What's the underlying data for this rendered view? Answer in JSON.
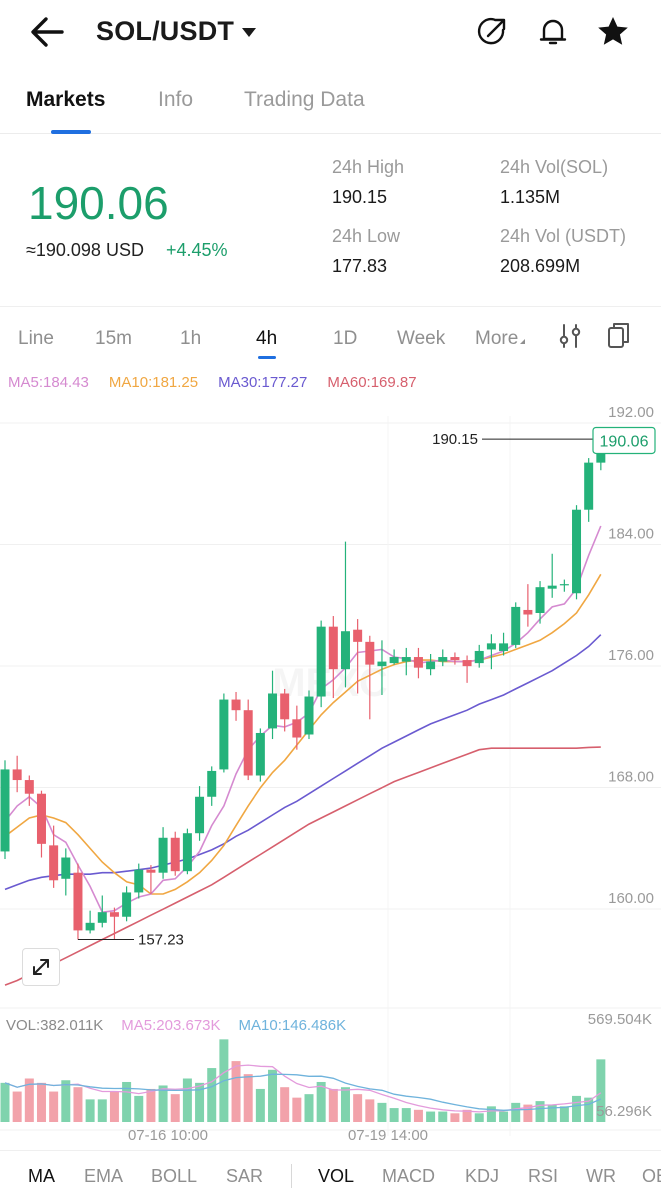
{
  "header": {
    "pair": "SOL/USDT",
    "back_icon": "back-arrow-icon",
    "icons": [
      "share-icon",
      "bell-icon",
      "star-icon"
    ]
  },
  "tabs": [
    {
      "label": "Markets",
      "active": true
    },
    {
      "label": "Info",
      "active": false
    },
    {
      "label": "Trading Data",
      "active": false
    }
  ],
  "ticker": {
    "last_price": "190.06",
    "approx_usd": "≈190.098 USD",
    "change": "+4.45%",
    "high_label": "24h High",
    "high_value": "190.15",
    "low_label": "24h Low",
    "low_value": "177.83",
    "vol_sol_label": "24h Vol(SOL)",
    "vol_sol_value": "1.135M",
    "vol_usdt_label": "24h Vol (USDT)",
    "vol_usdt_value": "208.699M"
  },
  "intervals": {
    "items": [
      "Line",
      "15m",
      "1h",
      "4h",
      "1D",
      "Week",
      "More"
    ],
    "active": "4h",
    "icons": [
      "indicator-settings-icon",
      "copy-icon"
    ]
  },
  "ma_legend": [
    {
      "label": "MA5:184.43",
      "color": "#d58ad0"
    },
    {
      "label": "MA10:181.25",
      "color": "#f0a742"
    },
    {
      "label": "MA30:177.27",
      "color": "#6a5ad0"
    },
    {
      "label": "MA60:169.87",
      "color": "#d65f6d"
    }
  ],
  "vol_legend": [
    {
      "label": "VOL:382.011K",
      "color": "#9a9a9a"
    },
    {
      "label": "MA5:203.673K",
      "color": "#e39bdc"
    },
    {
      "label": "MA10:146.486K",
      "color": "#6fb3dc"
    }
  ],
  "indicators": {
    "main": [
      "MA",
      "EMA",
      "BOLL",
      "SAR"
    ],
    "sub": [
      "VOL",
      "MACD",
      "KDJ",
      "RSI",
      "WR",
      "OB"
    ],
    "active_main": "MA",
    "active_sub": "VOL"
  },
  "colors": {
    "up": "#24b27a",
    "down": "#e8606d",
    "price_text": "#1c9e6b",
    "accent": "#1f6fe0"
  },
  "chart_data": {
    "type": "candlestick",
    "y_ticks": [
      "192.00",
      "184.00",
      "176.00",
      "168.00",
      "160.00"
    ],
    "ylim": [
      153.3,
      194.6
    ],
    "x_tick_labels": [
      "07-16 10:00",
      "07-19 14:00"
    ],
    "current_price_tag": "190.06",
    "max_label": "190.15",
    "min_label": "157.23",
    "volume_axis_labels": [
      "569.504K",
      "56.296K"
    ],
    "watermark": "MEXC",
    "candles": [
      [
        163.0,
        168.4,
        162.5,
        169.0
      ],
      [
        168.4,
        167.7,
        166.9,
        169.3
      ],
      [
        167.7,
        166.8,
        166.0,
        168.0
      ],
      [
        166.8,
        163.5,
        162.6,
        167.0
      ],
      [
        163.4,
        161.1,
        160.6,
        164.7
      ],
      [
        161.2,
        162.6,
        160.1,
        163.2
      ],
      [
        161.6,
        157.8,
        157.2,
        162.2
      ],
      [
        157.8,
        158.3,
        157.6,
        159.1
      ],
      [
        158.3,
        159.0,
        158.0,
        160.1
      ],
      [
        159.0,
        158.7,
        157.2,
        159.3
      ],
      [
        158.7,
        160.3,
        158.4,
        160.7
      ],
      [
        160.3,
        161.8,
        159.9,
        162.2
      ],
      [
        161.8,
        161.6,
        160.2,
        162.1
      ],
      [
        161.6,
        163.9,
        161.2,
        164.6
      ],
      [
        163.9,
        161.7,
        161.4,
        164.3
      ],
      [
        161.7,
        164.2,
        161.5,
        164.5
      ],
      [
        164.2,
        166.6,
        163.7,
        167.3
      ],
      [
        166.6,
        168.3,
        166.0,
        168.6
      ],
      [
        168.4,
        173.0,
        168.2,
        173.4
      ],
      [
        173.0,
        172.3,
        171.6,
        173.5
      ],
      [
        172.3,
        168.0,
        167.7,
        173.0
      ],
      [
        168.0,
        170.8,
        167.6,
        171.1
      ],
      [
        171.1,
        173.4,
        170.4,
        174.9
      ],
      [
        173.4,
        171.7,
        170.9,
        173.7
      ],
      [
        171.7,
        170.5,
        169.7,
        172.6
      ],
      [
        170.7,
        173.2,
        170.4,
        173.6
      ],
      [
        173.2,
        177.8,
        172.5,
        178.2
      ],
      [
        177.8,
        175.0,
        173.1,
        178.5
      ],
      [
        175.0,
        177.5,
        173.8,
        183.4
      ],
      [
        177.6,
        176.8,
        173.4,
        178.3
      ],
      [
        176.8,
        175.3,
        171.7,
        177.2
      ],
      [
        175.2,
        175.5,
        173.3,
        176.9
      ],
      [
        175.4,
        175.8,
        175.3,
        176.3
      ],
      [
        175.5,
        175.8,
        174.6,
        176.4
      ],
      [
        175.8,
        175.1,
        174.4,
        176.4
      ],
      [
        175.0,
        175.5,
        174.6,
        176.0
      ],
      [
        175.5,
        175.8,
        175.2,
        176.3
      ],
      [
        175.8,
        175.6,
        175.3,
        176.1
      ],
      [
        175.6,
        175.2,
        174.1,
        175.9
      ],
      [
        175.4,
        176.2,
        175.1,
        176.6
      ],
      [
        176.3,
        176.7,
        175.0,
        177.3
      ],
      [
        176.2,
        176.7,
        175.9,
        177.4
      ],
      [
        176.6,
        179.1,
        176.4,
        179.4
      ],
      [
        178.9,
        178.6,
        177.8,
        180.6
      ],
      [
        178.7,
        180.4,
        178.0,
        180.8
      ],
      [
        180.3,
        180.5,
        179.7,
        182.6
      ],
      [
        180.6,
        180.6,
        180.1,
        180.9
      ],
      [
        180.0,
        185.5,
        179.6,
        185.8
      ],
      [
        185.5,
        188.6,
        184.7,
        188.9
      ],
      [
        188.6,
        190.06,
        188.1,
        190.15
      ]
    ],
    "ma_lines": {
      "MA5": [
        165.0,
        166.0,
        166.6,
        165.9,
        164.1,
        163.6,
        162.1,
        160.7,
        159.0,
        159.1,
        159.6,
        160.0,
        160.2,
        161.1,
        161.2,
        162.0,
        163.0,
        164.7,
        166.0,
        168.1,
        169.7,
        170.6,
        171.3,
        171.2,
        171.5,
        172.1,
        173.7,
        174.3,
        175.1,
        176.1,
        176.2,
        176.3,
        175.8,
        175.7,
        175.4,
        175.5,
        175.6,
        175.5,
        175.5,
        175.6,
        175.9,
        176.2,
        176.7,
        177.4,
        178.3,
        179.1,
        179.3,
        180.3,
        182.5,
        184.43
      ],
      "MA10": [
        164.0,
        164.6,
        165.2,
        165.4,
        165.2,
        164.9,
        164.1,
        163.2,
        162.3,
        161.6,
        161.0,
        160.8,
        160.2,
        160.2,
        160.5,
        161.0,
        161.6,
        162.4,
        163.4,
        164.7,
        166.0,
        167.2,
        168.2,
        169.0,
        170.0,
        171.0,
        172.0,
        172.8,
        173.5,
        174.2,
        174.6,
        175.0,
        175.3,
        175.5,
        175.6,
        175.6,
        175.5,
        175.5,
        175.5,
        175.6,
        175.8,
        176.0,
        176.3,
        176.6,
        176.9,
        177.4,
        178.0,
        178.7,
        179.9,
        181.25
      ],
      "MA30": [
        160.5,
        160.8,
        161.1,
        161.3,
        161.4,
        161.5,
        161.5,
        161.5,
        161.6,
        161.6,
        161.7,
        161.8,
        161.9,
        162.1,
        162.3,
        162.5,
        162.8,
        163.1,
        163.5,
        164.0,
        164.4,
        164.9,
        165.4,
        165.9,
        166.3,
        166.8,
        167.3,
        167.8,
        168.3,
        168.8,
        169.3,
        169.8,
        170.2,
        170.6,
        171.0,
        171.4,
        171.7,
        172.0,
        172.3,
        172.7,
        173.0,
        173.3,
        173.7,
        174.1,
        174.5,
        174.9,
        175.4,
        175.9,
        176.5,
        177.27
      ],
      "MA60": [
        154.2,
        154.5,
        154.9,
        155.2,
        155.6,
        156.0,
        156.4,
        156.8,
        157.2,
        157.6,
        158.0,
        158.4,
        158.8,
        159.2,
        159.6,
        160.0,
        160.4,
        160.8,
        161.3,
        161.8,
        162.3,
        162.8,
        163.3,
        163.8,
        164.3,
        164.8,
        165.2,
        165.6,
        166.0,
        166.4,
        166.8,
        167.2,
        167.6,
        167.9,
        168.2,
        168.5,
        168.8,
        169.1,
        169.4,
        169.7,
        169.8,
        169.8,
        169.8,
        169.8,
        169.8,
        169.8,
        169.8,
        169.8,
        169.85,
        169.87
      ]
    },
    "volume": [
      0.45,
      0.35,
      0.5,
      0.45,
      0.35,
      0.48,
      0.4,
      0.26,
      0.26,
      0.35,
      0.46,
      0.3,
      0.38,
      0.42,
      0.32,
      0.5,
      0.45,
      0.62,
      0.95,
      0.7,
      0.55,
      0.38,
      0.6,
      0.4,
      0.28,
      0.32,
      0.46,
      0.38,
      0.4,
      0.32,
      0.26,
      0.22,
      0.16,
      0.16,
      0.14,
      0.12,
      0.12,
      0.1,
      0.14,
      0.1,
      0.18,
      0.12,
      0.22,
      0.2,
      0.24,
      0.2,
      0.18,
      0.3,
      0.28,
      0.72
    ]
  }
}
